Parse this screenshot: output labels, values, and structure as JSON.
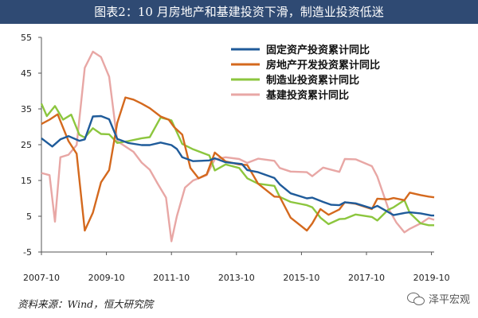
{
  "title": "图表2：10 月房地产和基建投资下滑，制造业投资低迷",
  "source": "资料来源：Wind，恒大研究院",
  "watermark": "泽平宏观",
  "chart_data": {
    "type": "line",
    "xlabel": "",
    "ylabel": "",
    "x_range": [
      "2007-10",
      "2019-11"
    ],
    "x_ticks": [
      "2007-10",
      "2009-10",
      "2011-10",
      "2013-10",
      "2015-10",
      "2017-10",
      "2019-10"
    ],
    "ylim": [
      -5,
      55
    ],
    "y_ticks": [
      -5,
      5,
      15,
      25,
      35,
      45,
      55
    ],
    "grid": false,
    "legend_position": "top-right",
    "series": [
      {
        "name": "固定资产投资累计同比",
        "color": "#1f5b9a",
        "points": [
          [
            "2007-10",
            26.8
          ],
          [
            "2008-02",
            24.5
          ],
          [
            "2008-05",
            26.5
          ],
          [
            "2008-08",
            27.4
          ],
          [
            "2008-12",
            26.1
          ],
          [
            "2009-02",
            26.5
          ],
          [
            "2009-05",
            32.9
          ],
          [
            "2009-08",
            33.0
          ],
          [
            "2009-11",
            32.1
          ],
          [
            "2010-02",
            26.6
          ],
          [
            "2010-06",
            25.5
          ],
          [
            "2010-11",
            24.9
          ],
          [
            "2011-02",
            24.9
          ],
          [
            "2011-06",
            25.6
          ],
          [
            "2011-10",
            24.9
          ],
          [
            "2011-12",
            23.8
          ],
          [
            "2012-02",
            21.5
          ],
          [
            "2012-06",
            20.4
          ],
          [
            "2012-12",
            20.6
          ],
          [
            "2013-02",
            21.2
          ],
          [
            "2013-06",
            20.1
          ],
          [
            "2013-12",
            19.6
          ],
          [
            "2014-02",
            17.9
          ],
          [
            "2014-06",
            17.3
          ],
          [
            "2014-12",
            15.7
          ],
          [
            "2015-02",
            13.9
          ],
          [
            "2015-06",
            11.4
          ],
          [
            "2015-12",
            10.0
          ],
          [
            "2016-02",
            10.2
          ],
          [
            "2016-06",
            9.0
          ],
          [
            "2016-09",
            8.2
          ],
          [
            "2016-12",
            8.1
          ],
          [
            "2017-02",
            8.9
          ],
          [
            "2017-06",
            8.6
          ],
          [
            "2017-12",
            7.2
          ],
          [
            "2018-02",
            7.9
          ],
          [
            "2018-08",
            5.3
          ],
          [
            "2018-12",
            5.9
          ],
          [
            "2019-02",
            6.1
          ],
          [
            "2019-06",
            5.8
          ],
          [
            "2019-10",
            5.2
          ],
          [
            "2019-11",
            5.2
          ]
        ]
      },
      {
        "name": "房地产开发投资累计同比",
        "color": "#d4691e",
        "points": [
          [
            "2007-10",
            30.8
          ],
          [
            "2008-01",
            32.0
          ],
          [
            "2008-04",
            33.5
          ],
          [
            "2008-08",
            26.0
          ],
          [
            "2008-11",
            22.5
          ],
          [
            "2009-02",
            1.0
          ],
          [
            "2009-05",
            6.0
          ],
          [
            "2009-08",
            14.5
          ],
          [
            "2009-11",
            17.9
          ],
          [
            "2010-02",
            31.1
          ],
          [
            "2010-05",
            38.2
          ],
          [
            "2010-08",
            37.6
          ],
          [
            "2010-11",
            36.5
          ],
          [
            "2011-02",
            35.2
          ],
          [
            "2011-06",
            32.9
          ],
          [
            "2011-09",
            32.0
          ],
          [
            "2011-11",
            29.9
          ],
          [
            "2012-02",
            27.8
          ],
          [
            "2012-05",
            18.5
          ],
          [
            "2012-08",
            15.6
          ],
          [
            "2012-11",
            16.7
          ],
          [
            "2013-02",
            22.8
          ],
          [
            "2013-06",
            20.3
          ],
          [
            "2013-11",
            19.5
          ],
          [
            "2014-02",
            19.3
          ],
          [
            "2014-06",
            14.1
          ],
          [
            "2014-12",
            10.5
          ],
          [
            "2015-02",
            10.4
          ],
          [
            "2015-06",
            4.6
          ],
          [
            "2015-12",
            1.0
          ],
          [
            "2016-02",
            3.0
          ],
          [
            "2016-05",
            7.0
          ],
          [
            "2016-08",
            5.4
          ],
          [
            "2016-12",
            6.9
          ],
          [
            "2017-02",
            8.9
          ],
          [
            "2017-06",
            8.5
          ],
          [
            "2017-12",
            7.0
          ],
          [
            "2018-02",
            9.9
          ],
          [
            "2018-06",
            9.7
          ],
          [
            "2018-08",
            10.1
          ],
          [
            "2018-12",
            9.5
          ],
          [
            "2019-02",
            11.6
          ],
          [
            "2019-06",
            10.9
          ],
          [
            "2019-09",
            10.5
          ],
          [
            "2019-11",
            10.3
          ]
        ]
      },
      {
        "name": "制造业投资累计同比",
        "color": "#8cc63e",
        "points": [
          [
            "2007-10",
            36.5
          ],
          [
            "2007-12",
            33.0
          ],
          [
            "2008-03",
            35.8
          ],
          [
            "2008-06",
            32.0
          ],
          [
            "2008-09",
            33.4
          ],
          [
            "2008-12",
            27.8
          ],
          [
            "2009-02",
            27.0
          ],
          [
            "2009-05",
            29.6
          ],
          [
            "2009-08",
            28.0
          ],
          [
            "2009-11",
            27.9
          ],
          [
            "2010-02",
            25.5
          ],
          [
            "2010-06",
            26.0
          ],
          [
            "2010-11",
            26.8
          ],
          [
            "2011-02",
            27.1
          ],
          [
            "2011-06",
            32.6
          ],
          [
            "2011-10",
            31.8
          ],
          [
            "2012-02",
            25.2
          ],
          [
            "2012-06",
            23.7
          ],
          [
            "2012-12",
            22.0
          ],
          [
            "2013-02",
            17.8
          ],
          [
            "2013-06",
            19.5
          ],
          [
            "2013-11",
            18.5
          ],
          [
            "2014-02",
            15.6
          ],
          [
            "2014-06",
            14.1
          ],
          [
            "2014-12",
            13.5
          ],
          [
            "2015-02",
            10.4
          ],
          [
            "2015-06",
            9.0
          ],
          [
            "2015-12",
            8.1
          ],
          [
            "2016-02",
            7.5
          ],
          [
            "2016-05",
            4.6
          ],
          [
            "2016-08",
            2.8
          ],
          [
            "2016-12",
            4.2
          ],
          [
            "2017-02",
            4.3
          ],
          [
            "2017-06",
            5.5
          ],
          [
            "2017-12",
            4.8
          ],
          [
            "2018-02",
            3.8
          ],
          [
            "2018-06",
            6.8
          ],
          [
            "2018-08",
            7.5
          ],
          [
            "2018-12",
            9.5
          ],
          [
            "2019-02",
            5.9
          ],
          [
            "2019-06",
            3.0
          ],
          [
            "2019-09",
            2.5
          ],
          [
            "2019-11",
            2.5
          ]
        ]
      },
      {
        "name": "基建投资累计同比",
        "color": "#e8a7a5",
        "points": [
          [
            "2007-10",
            17.1
          ],
          [
            "2008-01",
            16.5
          ],
          [
            "2008-03",
            3.5
          ],
          [
            "2008-05",
            21.5
          ],
          [
            "2008-08",
            22.2
          ],
          [
            "2008-11",
            24.9
          ],
          [
            "2009-02",
            46.5
          ],
          [
            "2009-05",
            51.0
          ],
          [
            "2009-08",
            49.5
          ],
          [
            "2009-11",
            44.0
          ],
          [
            "2010-02",
            26.0
          ],
          [
            "2010-05",
            24.5
          ],
          [
            "2010-08",
            23.0
          ],
          [
            "2010-11",
            20.0
          ],
          [
            "2011-02",
            18.0
          ],
          [
            "2011-05",
            14.0
          ],
          [
            "2011-08",
            10.2
          ],
          [
            "2011-10",
            -2.0
          ],
          [
            "2011-12",
            5.0
          ],
          [
            "2012-03",
            13.0
          ],
          [
            "2012-06",
            15.0
          ],
          [
            "2012-11",
            16.5
          ],
          [
            "2013-02",
            20.9
          ],
          [
            "2013-06",
            21.5
          ],
          [
            "2013-11",
            21.0
          ],
          [
            "2014-02",
            19.9
          ],
          [
            "2014-06",
            21.1
          ],
          [
            "2014-12",
            20.5
          ],
          [
            "2015-02",
            18.5
          ],
          [
            "2015-06",
            17.5
          ],
          [
            "2015-12",
            17.3
          ],
          [
            "2016-02",
            16.2
          ],
          [
            "2016-06",
            18.6
          ],
          [
            "2016-12",
            17.4
          ],
          [
            "2017-02",
            21.0
          ],
          [
            "2017-06",
            20.9
          ],
          [
            "2017-12",
            19.0
          ],
          [
            "2018-02",
            16.1
          ],
          [
            "2018-06",
            7.3
          ],
          [
            "2018-09",
            3.3
          ],
          [
            "2018-12",
            0.5
          ],
          [
            "2019-02",
            1.5
          ],
          [
            "2019-06",
            3.0
          ],
          [
            "2019-09",
            4.5
          ],
          [
            "2019-11",
            4.0
          ]
        ]
      }
    ]
  }
}
